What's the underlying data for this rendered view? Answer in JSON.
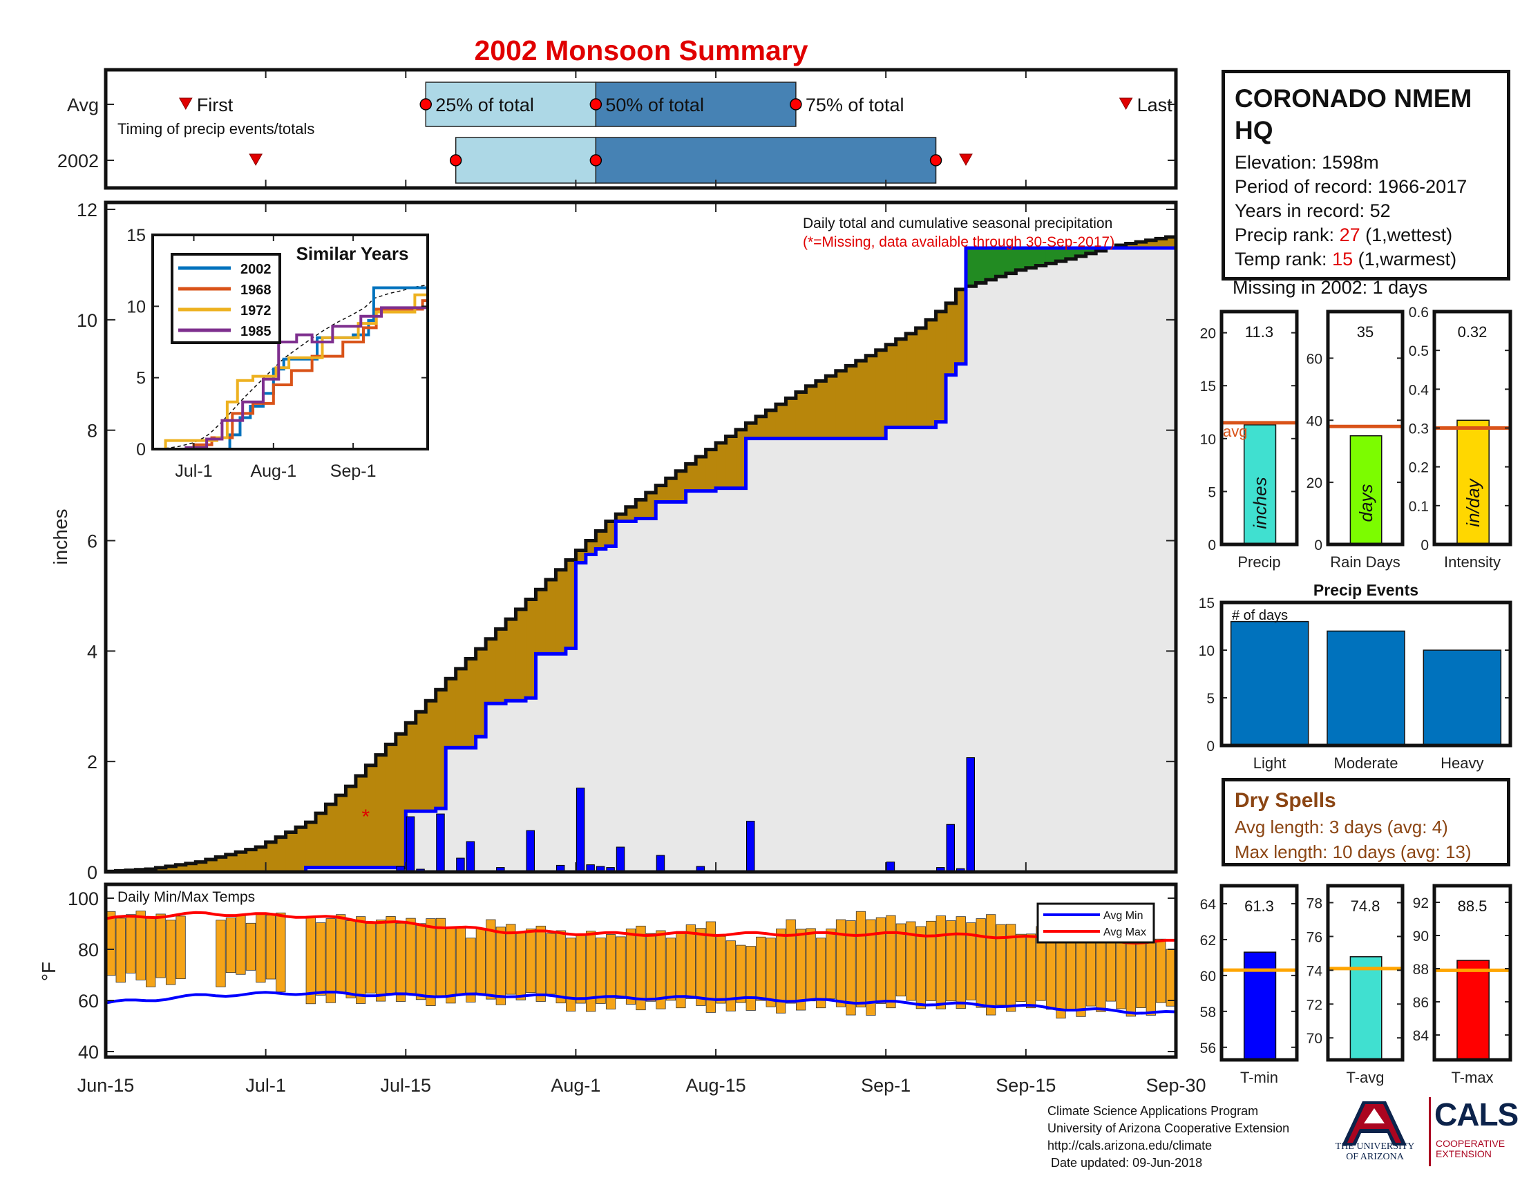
{
  "page_title": "2002 Monsoon Summary",
  "station": {
    "name": "CORONADO NMEM HQ",
    "elevation_label": "Elevation: 1598m",
    "period_label": "Period of record: 1966-2017",
    "years_label": "Years in record: 52",
    "precip_rank_prefix": "Precip rank: ",
    "precip_rank": "27",
    "precip_rank_suffix": " (1,wettest)",
    "temp_rank_prefix": "Temp rank: ",
    "temp_rank": "15",
    "temp_rank_suffix": " (1,warmest)",
    "missing_label": "Missing in 2002: 1 days"
  },
  "dry_spells": {
    "title": "Dry Spells",
    "avg_label": "Avg length: 3 days (avg: 4)",
    "max_label": "Max length: 10 days (avg: 13)"
  },
  "footer": {
    "line1": "Climate Science Applications Program",
    "line2": "University of Arizona Cooperative Extension",
    "line3": "http://cals.arizona.edu/climate",
    "line4": " Date updated: 09-Jun-2018"
  },
  "logos": {
    "ua_letter": "A",
    "ua_text_1": "THE UNIVERSITY",
    "ua_text_2": "OF ARIZONA",
    "cals_text": "CALS",
    "coop_1": "COOPERATIVE",
    "coop_2": "EXTENSION",
    "ua_blue": "#0C234B",
    "ua_red": "#AB0520"
  },
  "colors": {
    "title_red": "#e00000",
    "obs_cumulative": "#0000ff",
    "avg_cumulative": "#111111",
    "below_avg_fill": "#b8860b",
    "above_avg_fill": "#228b22",
    "background_fill": "#e8e8e8",
    "temp_bar": "#f5a418",
    "avg_max_line": "#ff0000",
    "avg_min_line": "#0000ff",
    "bar_blue": "#0072bd",
    "avg_line_orange": "#d95319"
  },
  "chart_data": [
    {
      "id": "timing",
      "type": "timeline",
      "rows": [
        "Avg",
        "2002"
      ],
      "note": "Timing of precip events/totals",
      "labels": {
        "first": "First",
        "p25": "25% of total",
        "p50": "50% of total",
        "p75": "75% of total",
        "last": "Last"
      },
      "x_axis": "date",
      "avg": {
        "first": "2018-06-23",
        "p25": "2018-07-17",
        "p50": "2018-08-03",
        "p75": "2018-08-23",
        "last": "2018-09-25"
      },
      "year_2002": {
        "first": "2018-06-30",
        "p25": "2018-07-20",
        "p50": "2018-08-03",
        "p75": "2018-09-06",
        "last": "2018-09-09"
      }
    },
    {
      "id": "precip",
      "type": "area",
      "title": "Daily total and cumulative seasonal precipitation",
      "subtitle": "(*=Missing, data available through 30-Sep-2017)",
      "ylabel": "inches",
      "ylim": [
        0,
        12
      ],
      "yticks": [
        0,
        2,
        4,
        6,
        8,
        10,
        12
      ],
      "xlim": [
        "2018-06-15",
        "2018-09-30"
      ],
      "xticks": [
        "Jun-15",
        "Jul-1",
        "Jul-15",
        "Aug-1",
        "Aug-15",
        "Sep-1",
        "Sep-15",
        "Sep-30"
      ],
      "missing_marker": {
        "date": "2018-07-11",
        "value": 1.0
      },
      "cumulative_2002": [
        [
          "2018-06-15",
          0.0
        ],
        [
          "2018-07-01",
          0.0
        ],
        [
          "2018-07-05",
          0.08
        ],
        [
          "2018-07-14",
          0.08
        ],
        [
          "2018-07-15",
          1.1
        ],
        [
          "2018-07-18",
          1.15
        ],
        [
          "2018-07-19",
          2.25
        ],
        [
          "2018-07-21",
          2.25
        ],
        [
          "2018-07-22",
          2.45
        ],
        [
          "2018-07-23",
          3.05
        ],
        [
          "2018-07-25",
          3.1
        ],
        [
          "2018-07-27",
          3.15
        ],
        [
          "2018-07-28",
          3.95
        ],
        [
          "2018-07-30",
          3.95
        ],
        [
          "2018-07-31",
          4.05
        ],
        [
          "2018-08-01",
          5.6
        ],
        [
          "2018-08-02",
          5.75
        ],
        [
          "2018-08-03",
          5.85
        ],
        [
          "2018-08-04",
          5.9
        ],
        [
          "2018-08-05",
          6.35
        ],
        [
          "2018-08-07",
          6.4
        ],
        [
          "2018-08-09",
          6.7
        ],
        [
          "2018-08-12",
          6.9
        ],
        [
          "2018-08-15",
          6.95
        ],
        [
          "2018-08-18",
          7.85
        ],
        [
          "2018-08-31",
          7.85
        ],
        [
          "2018-09-01",
          8.05
        ],
        [
          "2018-09-06",
          8.15
        ],
        [
          "2018-09-07",
          9.0
        ],
        [
          "2018-09-08",
          9.2
        ],
        [
          "2018-09-09",
          11.3
        ],
        [
          "2018-09-30",
          11.3
        ]
      ],
      "cumulative_avg": [
        [
          "2018-06-15",
          0.0
        ],
        [
          "2018-06-20",
          0.05
        ],
        [
          "2018-06-25",
          0.18
        ],
        [
          "2018-07-01",
          0.45
        ],
        [
          "2018-07-06",
          0.9
        ],
        [
          "2018-07-10",
          1.55
        ],
        [
          "2018-07-15",
          2.5
        ],
        [
          "2018-07-20",
          3.5
        ],
        [
          "2018-07-25",
          4.4
        ],
        [
          "2018-08-01",
          5.65
        ],
        [
          "2018-08-05",
          6.35
        ],
        [
          "2018-08-10",
          7.0
        ],
        [
          "2018-08-15",
          7.65
        ],
        [
          "2018-08-20",
          8.25
        ],
        [
          "2018-08-25",
          8.8
        ],
        [
          "2018-08-31",
          9.35
        ],
        [
          "2018-09-05",
          9.85
        ],
        [
          "2018-09-08",
          10.3
        ],
        [
          "2018-09-09",
          10.55
        ],
        [
          "2018-09-15",
          10.9
        ],
        [
          "2018-09-20",
          11.1
        ],
        [
          "2018-09-25",
          11.35
        ],
        [
          "2018-09-30",
          11.5
        ]
      ],
      "daily_2002": [
        [
          "2018-07-14",
          0.1
        ],
        [
          "2018-07-15",
          1.0
        ],
        [
          "2018-07-16",
          0.05
        ],
        [
          "2018-07-18",
          1.05
        ],
        [
          "2018-07-20",
          0.25
        ],
        [
          "2018-07-21",
          0.55
        ],
        [
          "2018-07-24",
          0.08
        ],
        [
          "2018-07-27",
          0.75
        ],
        [
          "2018-07-30",
          0.12
        ],
        [
          "2018-08-01",
          1.52
        ],
        [
          "2018-08-02",
          0.13
        ],
        [
          "2018-08-03",
          0.1
        ],
        [
          "2018-08-04",
          0.08
        ],
        [
          "2018-08-05",
          0.45
        ],
        [
          "2018-08-09",
          0.3
        ],
        [
          "2018-08-13",
          0.1
        ],
        [
          "2018-08-18",
          0.92
        ],
        [
          "2018-09-01",
          0.18
        ],
        [
          "2018-09-06",
          0.08
        ],
        [
          "2018-09-07",
          0.86
        ],
        [
          "2018-09-08",
          0.06
        ],
        [
          "2018-09-09",
          2.07
        ]
      ]
    },
    {
      "id": "similar_years",
      "type": "line",
      "title": "Similar Years",
      "ylim": [
        0,
        15
      ],
      "yticks": [
        0,
        5,
        10,
        15
      ],
      "xlim": [
        "2018-06-15",
        "2018-09-30"
      ],
      "xticks": [
        "Jul-1",
        "Aug-1",
        "Sep-1"
      ],
      "series": [
        {
          "name": "2002",
          "color": "#0072bd",
          "values": [
            [
              "2018-06-15",
              0
            ],
            [
              "2018-07-14",
              0
            ],
            [
              "2018-07-15",
              1
            ],
            [
              "2018-07-19",
              2.2
            ],
            [
              "2018-07-23",
              3
            ],
            [
              "2018-07-28",
              3.9
            ],
            [
              "2018-08-01",
              5.6
            ],
            [
              "2018-08-05",
              6.3
            ],
            [
              "2018-08-18",
              7.8
            ],
            [
              "2018-09-01",
              8
            ],
            [
              "2018-09-07",
              9
            ],
            [
              "2018-09-09",
              11.3
            ],
            [
              "2018-09-30",
              11.3
            ]
          ]
        },
        {
          "name": "1968",
          "color": "#d95319",
          "values": [
            [
              "2018-06-15",
              0
            ],
            [
              "2018-07-01",
              0.3
            ],
            [
              "2018-07-08",
              0.8
            ],
            [
              "2018-07-16",
              2.5
            ],
            [
              "2018-07-24",
              3.2
            ],
            [
              "2018-08-01",
              4.5
            ],
            [
              "2018-08-08",
              5.5
            ],
            [
              "2018-08-16",
              6.5
            ],
            [
              "2018-08-28",
              7.5
            ],
            [
              "2018-09-05",
              8.5
            ],
            [
              "2018-09-10",
              9.8
            ],
            [
              "2018-09-28",
              10.4
            ],
            [
              "2018-09-30",
              10.5
            ]
          ]
        },
        {
          "name": "1972",
          "color": "#edb120",
          "values": [
            [
              "2018-06-15",
              0
            ],
            [
              "2018-06-20",
              0.6
            ],
            [
              "2018-07-10",
              0.8
            ],
            [
              "2018-07-14",
              3.3
            ],
            [
              "2018-07-18",
              4.8
            ],
            [
              "2018-07-24",
              5.1
            ],
            [
              "2018-08-02",
              5.7
            ],
            [
              "2018-08-07",
              6.4
            ],
            [
              "2018-08-20",
              7.8
            ],
            [
              "2018-09-03",
              8.8
            ],
            [
              "2018-09-10",
              9.6
            ],
            [
              "2018-09-25",
              10.8
            ],
            [
              "2018-09-30",
              11
            ]
          ]
        },
        {
          "name": "1985",
          "color": "#7e2f8e",
          "values": [
            [
              "2018-06-15",
              0
            ],
            [
              "2018-06-28",
              0.1
            ],
            [
              "2018-07-06",
              0.7
            ],
            [
              "2018-07-12",
              2
            ],
            [
              "2018-07-20",
              3.3
            ],
            [
              "2018-07-28",
              4.9
            ],
            [
              "2018-08-03",
              7.5
            ],
            [
              "2018-08-10",
              8
            ],
            [
              "2018-08-16",
              7.5
            ],
            [
              "2018-08-24",
              8.6
            ],
            [
              "2018-09-04",
              9.3
            ],
            [
              "2018-09-12",
              9.9
            ],
            [
              "2018-09-30",
              10.2
            ]
          ]
        }
      ],
      "avg_dashed": true
    },
    {
      "id": "summary_precip",
      "type": "bar",
      "xlabel": "Precip",
      "bar_label": "inches",
      "value": 11.3,
      "value_label": "11.3",
      "avg": 11.5,
      "avg_label": "avg",
      "ylim": [
        0,
        22
      ],
      "yticks": [
        0,
        5,
        10,
        15,
        20
      ],
      "color": "#40e0d0"
    },
    {
      "id": "summary_raindays",
      "type": "bar",
      "xlabel": "Rain Days",
      "bar_label": "days",
      "value": 35,
      "value_label": "35",
      "avg": 38,
      "ylim": [
        0,
        75
      ],
      "yticks": [
        0,
        20,
        40,
        60
      ],
      "color": "#7cfc00"
    },
    {
      "id": "summary_intensity",
      "type": "bar",
      "xlabel": "Intensity",
      "bar_label": "in/day",
      "value": 0.32,
      "value_label": "0.32",
      "avg": 0.3,
      "ylim": [
        0,
        0.6
      ],
      "yticks": [
        0,
        0.1,
        0.2,
        0.3,
        0.4,
        0.5,
        0.6
      ],
      "color": "#ffd700"
    },
    {
      "id": "precip_events",
      "type": "bar",
      "title": "Precip Events",
      "annotation": "# of days",
      "categories": [
        "Light",
        "Moderate",
        "Heavy"
      ],
      "values": [
        13,
        12,
        10
      ],
      "ylim": [
        0,
        15
      ],
      "yticks": [
        0,
        5,
        10,
        15
      ]
    },
    {
      "id": "temps",
      "type": "bar",
      "title": "Daily Min/Max Temps",
      "ylabel": "°F",
      "ylim": [
        40,
        100
      ],
      "yticks": [
        40,
        60,
        80,
        100
      ],
      "legend": [
        "Avg Min",
        "Avg Max"
      ],
      "legend_position": "top-right",
      "xlim": [
        "2018-06-15",
        "2018-09-30"
      ],
      "tmax_nodes": [
        [
          0,
          94
        ],
        [
          5,
          93
        ],
        [
          11,
          93
        ],
        [
          14,
          91
        ],
        [
          16,
          95
        ],
        [
          20,
          92
        ],
        [
          25,
          92
        ],
        [
          29,
          91
        ],
        [
          32,
          92
        ],
        [
          36,
          86
        ],
        [
          38,
          90
        ],
        [
          42,
          88
        ],
        [
          46,
          86
        ],
        [
          50,
          85
        ],
        [
          52,
          88
        ],
        [
          56,
          86
        ],
        [
          60,
          90
        ],
        [
          63,
          80
        ],
        [
          68,
          90
        ],
        [
          71,
          86
        ],
        [
          75,
          94
        ],
        [
          80,
          90
        ],
        [
          84,
          92
        ],
        [
          88,
          92
        ],
        [
          92,
          86
        ],
        [
          95,
          90
        ],
        [
          98,
          82
        ],
        [
          102,
          88
        ],
        [
          107,
          80
        ]
      ],
      "tmin_nodes": [
        [
          0,
          68
        ],
        [
          3,
          68
        ],
        [
          6,
          68
        ],
        [
          9,
          64
        ],
        [
          13,
          72
        ],
        [
          15,
          68
        ],
        [
          18,
          61
        ],
        [
          22,
          60
        ],
        [
          26,
          62
        ],
        [
          30,
          60
        ],
        [
          33,
          61
        ],
        [
          37,
          60
        ],
        [
          41,
          62
        ],
        [
          45,
          59
        ],
        [
          49,
          57
        ],
        [
          53,
          59
        ],
        [
          57,
          58
        ],
        [
          61,
          58
        ],
        [
          64,
          57
        ],
        [
          68,
          58
        ],
        [
          72,
          58
        ],
        [
          76,
          56
        ],
        [
          80,
          60
        ],
        [
          84,
          58
        ],
        [
          88,
          57
        ],
        [
          92,
          58
        ],
        [
          96,
          55
        ],
        [
          100,
          57
        ],
        [
          104,
          56
        ],
        [
          107,
          60
        ]
      ],
      "gaps": [
        [
          8,
          10
        ],
        [
          18,
          19
        ]
      ],
      "avg_max": [
        [
          0,
          92
        ],
        [
          10,
          94
        ],
        [
          20,
          93
        ],
        [
          30,
          90
        ],
        [
          40,
          87
        ],
        [
          50,
          86
        ],
        [
          60,
          86
        ],
        [
          70,
          86
        ],
        [
          80,
          86
        ],
        [
          90,
          85
        ],
        [
          100,
          83
        ],
        [
          107,
          83
        ]
      ],
      "avg_min": [
        [
          0,
          59
        ],
        [
          10,
          62
        ],
        [
          20,
          63
        ],
        [
          30,
          62
        ],
        [
          40,
          62
        ],
        [
          50,
          61
        ],
        [
          60,
          61
        ],
        [
          70,
          60
        ],
        [
          80,
          59
        ],
        [
          90,
          58
        ],
        [
          100,
          56
        ],
        [
          107,
          55
        ]
      ]
    },
    {
      "id": "summary_tmin",
      "type": "bar",
      "xlabel": "T-min",
      "value": 61.3,
      "value_label": "61.3",
      "avg": 60.3,
      "ylim": [
        55.3,
        65
      ],
      "yticks": [
        56,
        58,
        60,
        62,
        64
      ],
      "color": "#0000ff"
    },
    {
      "id": "summary_tavg",
      "type": "bar",
      "xlabel": "T-avg",
      "value": 74.8,
      "value_label": "74.8",
      "avg": 74.1,
      "ylim": [
        68.7,
        79
      ],
      "yticks": [
        70,
        72,
        74,
        76,
        78
      ],
      "color": "#40e0d0"
    },
    {
      "id": "summary_tmax",
      "type": "bar",
      "xlabel": "T-max",
      "value": 88.5,
      "value_label": "88.5",
      "avg": 87.9,
      "ylim": [
        82.5,
        93
      ],
      "yticks": [
        84,
        86,
        88,
        90,
        92
      ],
      "color": "#ff0000"
    }
  ]
}
